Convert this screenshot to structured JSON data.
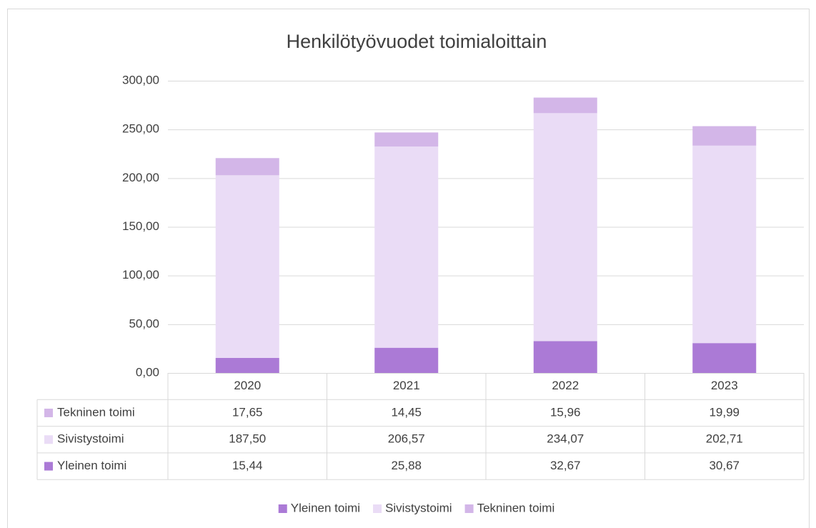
{
  "chart_data": {
    "type": "bar",
    "stacked": true,
    "title": "Henkilötyövuodet toimialoittain",
    "categories": [
      "2020",
      "2021",
      "2022",
      "2023"
    ],
    "series": [
      {
        "name": "Yleinen toimi",
        "color": "#ab7ad6",
        "values": [
          15.44,
          25.88,
          32.67,
          30.67
        ],
        "value_labels": [
          "15,44",
          "25,88",
          "32,67",
          "30,67"
        ]
      },
      {
        "name": "Sivistystoimi",
        "color": "#eadcf6",
        "values": [
          187.5,
          206.57,
          234.07,
          202.71
        ],
        "value_labels": [
          "187,50",
          "206,57",
          "234,07",
          "202,71"
        ]
      },
      {
        "name": "Tekninen toimi",
        "color": "#d3b6e8",
        "values": [
          17.65,
          14.45,
          15.96,
          19.99
        ],
        "value_labels": [
          "17,65",
          "14,45",
          "15,96",
          "19,99"
        ]
      }
    ],
    "ylim": [
      0,
      300
    ],
    "yticks": [
      {
        "value": 0,
        "label": "0,00"
      },
      {
        "value": 50,
        "label": "50,00"
      },
      {
        "value": 100,
        "label": "100,00"
      },
      {
        "value": 150,
        "label": "150,00"
      },
      {
        "value": 200,
        "label": "200,00"
      },
      {
        "value": 250,
        "label": "250,00"
      },
      {
        "value": 300,
        "label": "300,00"
      }
    ],
    "grid": true,
    "data_table": true,
    "legend": "bottom"
  }
}
